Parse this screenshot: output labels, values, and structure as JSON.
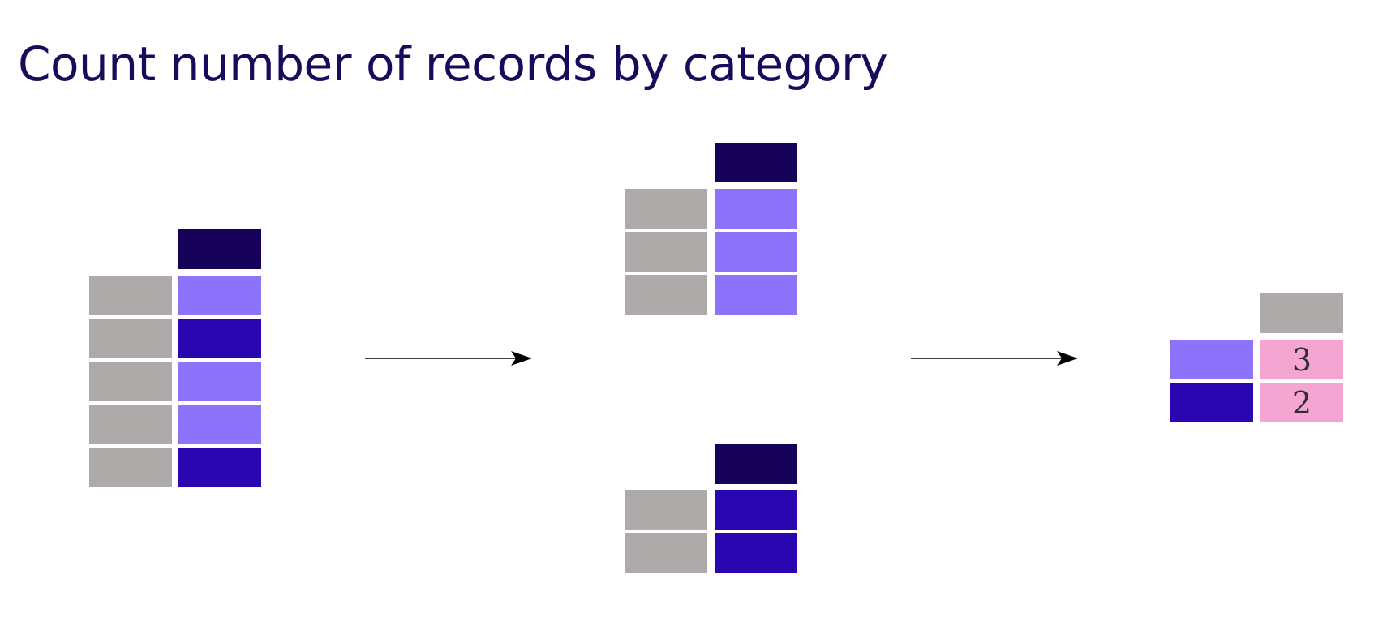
{
  "title": "Count number of records by category",
  "colors": {
    "title": "#1a0a5c",
    "header": "#170259",
    "key": "#aeaaa9",
    "category_a": "#8d73f9",
    "category_b": "#2a06b1",
    "count": "#f5a5d1",
    "arrow": "#000000"
  },
  "source_table": {
    "rows": [
      "category_a",
      "category_b",
      "category_a",
      "category_a",
      "category_b"
    ]
  },
  "groups": [
    {
      "category": "category_a",
      "record_count": 3
    },
    {
      "category": "category_b",
      "record_count": 2
    }
  ],
  "result_table": {
    "rows": [
      {
        "category": "category_a",
        "count": "3"
      },
      {
        "category": "category_b",
        "count": "2"
      }
    ]
  }
}
